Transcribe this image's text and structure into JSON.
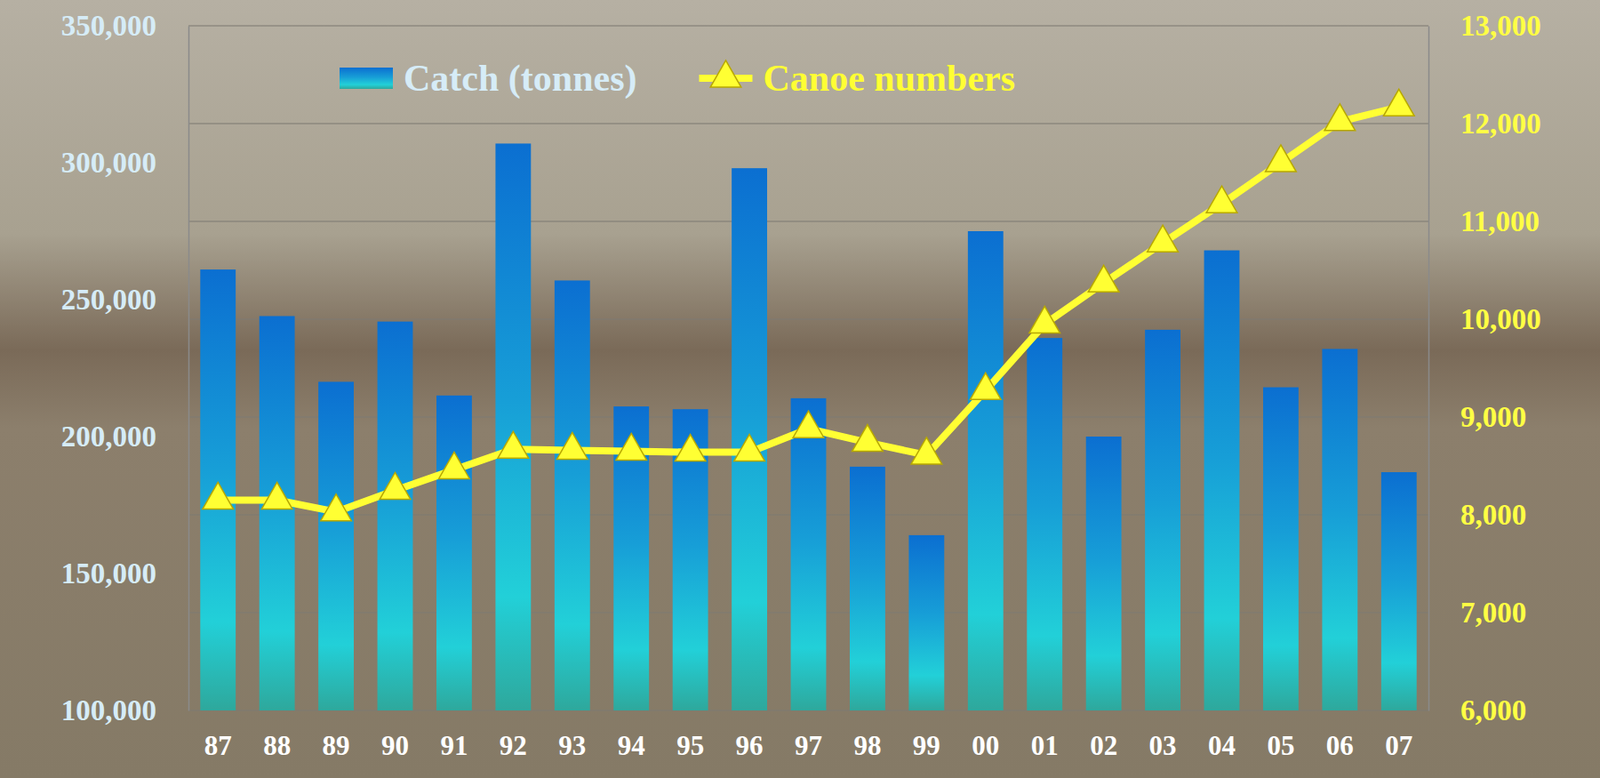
{
  "chart_data": {
    "type": "bar",
    "categories": [
      "87",
      "88",
      "89",
      "90",
      "91",
      "92",
      "93",
      "94",
      "95",
      "96",
      "97",
      "98",
      "99",
      "00",
      "01",
      "02",
      "03",
      "04",
      "05",
      "06",
      "07"
    ],
    "series": [
      {
        "name": "Catch (tonnes)",
        "type": "bar",
        "color": "#0b6fd1",
        "values": [
          261000,
          244000,
          220000,
          242000,
          215000,
          307000,
          257000,
          211000,
          210000,
          298000,
          214000,
          189000,
          164000,
          275000,
          236000,
          200000,
          239000,
          268000,
          218000,
          232000,
          187000
        ]
      },
      {
        "name": "Canoe numbers",
        "type": "line",
        "color": "#ffff33",
        "marker": "triangle",
        "axis": "y2",
        "values": [
          8150,
          8150,
          8030,
          8250,
          8460,
          8670,
          8660,
          8650,
          8640,
          8640,
          8880,
          8740,
          8610,
          9270,
          9950,
          10370,
          10780,
          11180,
          11600,
          12020,
          12170
        ]
      }
    ],
    "ylim": [
      100000,
      350000
    ],
    "yticks": [
      {
        "value": 100000,
        "label": "100,000"
      },
      {
        "value": 150000,
        "label": "150,000"
      },
      {
        "value": 200000,
        "label": "200,000"
      },
      {
        "value": 250000,
        "label": "250,000"
      },
      {
        "value": 300000,
        "label": "300,000"
      },
      {
        "value": 350000,
        "label": "350,000"
      }
    ],
    "y2lim": [
      6000,
      13000
    ],
    "y2ticks": [
      {
        "value": 6000,
        "label": "6,000"
      },
      {
        "value": 7000,
        "label": "7,000"
      },
      {
        "value": 8000,
        "label": "8,000"
      },
      {
        "value": 9000,
        "label": "9,000"
      },
      {
        "value": 10000,
        "label": "10,000"
      },
      {
        "value": 11000,
        "label": "11,000"
      },
      {
        "value": 12000,
        "label": "12,000"
      },
      {
        "value": 13000,
        "label": "13,000"
      }
    ],
    "grid": true,
    "legend": "top"
  }
}
